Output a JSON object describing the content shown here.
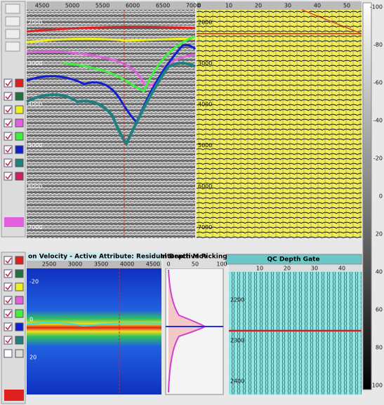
{
  "horizon_view": {
    "x_labels": [
      "4500",
      "5000",
      "5500",
      "6000",
      "6500",
      "7000"
    ],
    "y_labels": [
      "2000",
      "3000",
      "4000",
      "5000",
      "6000",
      "7000"
    ]
  },
  "seismic_view": {
    "x_labels": [
      "0",
      "10",
      "20",
      "30",
      "40",
      "50"
    ],
    "y_labels": [
      "2000",
      "3000",
      "4000",
      "5000",
      "6000",
      "7000"
    ]
  },
  "color_scale": {
    "labels": [
      "-100",
      "-80",
      "-60",
      "-40",
      "-20",
      "0",
      "20",
      "40",
      "60",
      "80",
      "100"
    ]
  },
  "velocity_panel": {
    "title": "on Velocity - Active Attribute: Residual Depth Mov",
    "x_labels": [
      "2500",
      "3000",
      "3500",
      "4000",
      "4500"
    ],
    "y_labels": [
      "-20",
      "0",
      "20"
    ]
  },
  "picking_panel": {
    "title": "Interactive Picking",
    "x_labels": [
      "0",
      "50",
      "100"
    ]
  },
  "qc_panel": {
    "title": "QC Depth Gate",
    "x_labels": [
      "10",
      "20",
      "30",
      "40"
    ],
    "y_labels": [
      "2200",
      "2300",
      "2400"
    ]
  }
}
